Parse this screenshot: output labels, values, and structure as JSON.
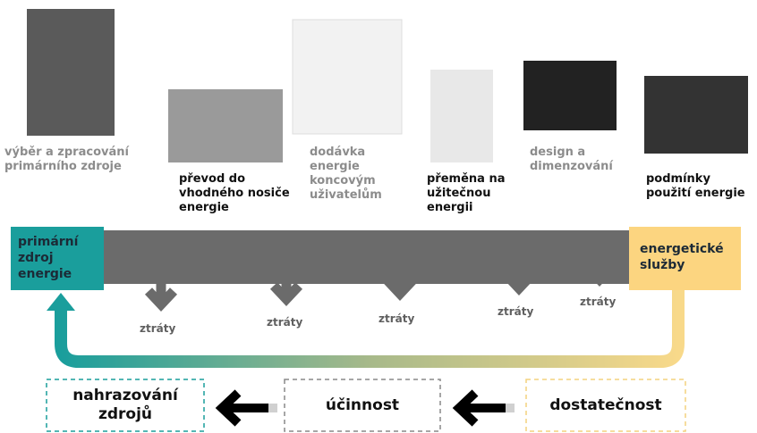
{
  "stages": [
    {
      "label": "výběr a zpracování primárního zdroje"
    },
    {
      "label": "převod do vhodného nosiče energie"
    },
    {
      "label": "dodávka energie koncovým uživatelům"
    },
    {
      "label": "přeměna na užitečnou energii"
    },
    {
      "label": "design a dimenzování"
    },
    {
      "label": "podmínky použití energie"
    }
  ],
  "source": "primární zdroj energie",
  "services": "energetické služby",
  "losses": [
    "ztráty",
    "ztráty",
    "ztráty",
    "ztráty",
    "ztráty"
  ],
  "strategies": [
    "nahrazování zdrojů",
    "účinnost",
    "dostatečnost"
  ]
}
